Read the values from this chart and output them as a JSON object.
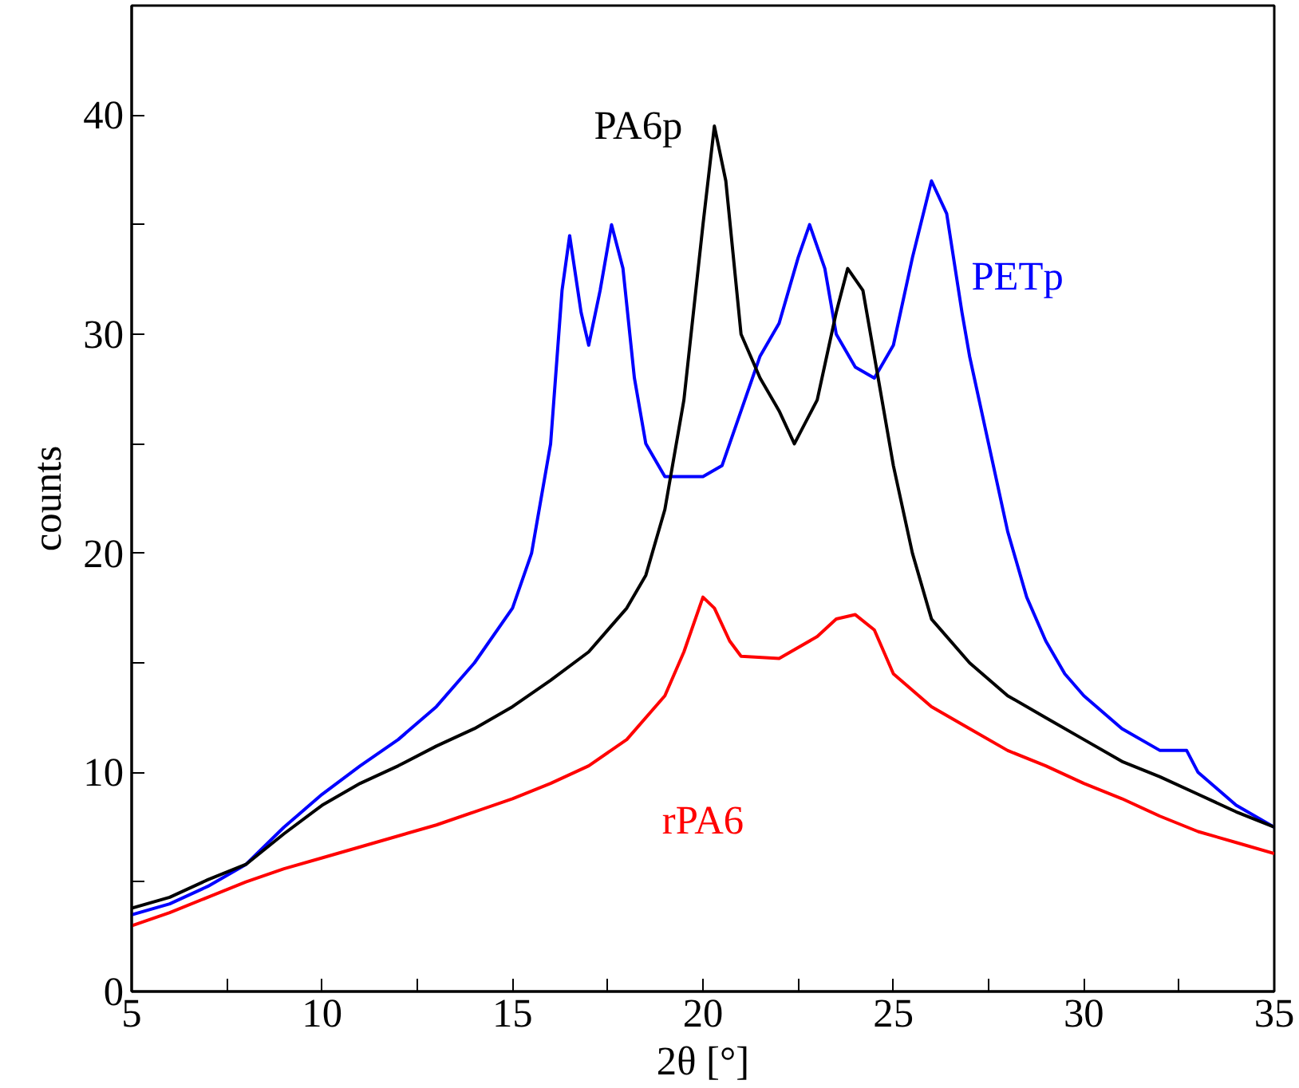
{
  "chart_data": {
    "type": "line",
    "xlabel": "2θ [°]",
    "ylabel": "counts",
    "xlim": [
      5,
      35
    ],
    "ylim": [
      0,
      45
    ],
    "xticks": [
      5,
      {
        "value": 7.5,
        "label": null
      },
      10,
      {
        "value": 12.5,
        "label": null
      },
      15,
      {
        "value": 17.5,
        "label": null
      },
      20,
      {
        "value": 22.5,
        "label": null
      },
      25,
      {
        "value": 27.5,
        "label": null
      },
      30,
      {
        "value": 32.5,
        "label": null
      },
      35
    ],
    "yticks": [
      0,
      {
        "value": 5,
        "label": null
      },
      10,
      {
        "value": 15,
        "label": null
      },
      20,
      {
        "value": 25,
        "label": null
      },
      30,
      {
        "value": 35,
        "label": null
      },
      40
    ],
    "grid": false,
    "marker": "none",
    "line_style": "solid",
    "series": [
      {
        "name": "PETp",
        "color": "#0000ff",
        "x": [
          5,
          6,
          7,
          8,
          9,
          10,
          11,
          12,
          13,
          14,
          15,
          15.5,
          16,
          16.3,
          16.5,
          16.8,
          17,
          17.3,
          17.6,
          17.9,
          18.2,
          18.5,
          19,
          20,
          20.5,
          21,
          21.5,
          22,
          22.5,
          22.8,
          23.2,
          23.5,
          24,
          24.5,
          25,
          25.5,
          26,
          26.4,
          26.8,
          27,
          27.5,
          28,
          28.5,
          29,
          29.5,
          30,
          31,
          32,
          32.7,
          33,
          34,
          35
        ],
        "values": [
          3.5,
          4,
          4.8,
          5.8,
          7.5,
          9,
          10.3,
          11.5,
          13,
          15,
          17.5,
          20,
          25,
          32,
          34.5,
          31,
          29.5,
          32,
          35,
          33,
          28,
          25,
          23.5,
          23.5,
          24,
          26.5,
          29,
          30.5,
          33.5,
          35,
          33,
          30,
          28.5,
          28,
          29.5,
          33.5,
          37,
          35.5,
          31,
          29,
          25,
          21,
          18,
          16,
          14.5,
          13.5,
          12,
          11,
          11,
          10,
          8.5,
          7.5
        ]
      },
      {
        "name": "PA6p",
        "color": "#000000",
        "x": [
          5,
          6,
          7,
          8,
          9,
          10,
          11,
          12,
          13,
          14,
          15,
          16,
          17,
          18,
          18.5,
          19,
          19.5,
          20,
          20.3,
          20.6,
          21,
          21.5,
          22,
          22.4,
          23,
          23.5,
          23.8,
          24.2,
          24.6,
          25,
          25.5,
          26,
          27,
          28,
          29,
          30,
          31,
          32,
          33,
          34,
          35
        ],
        "values": [
          3.8,
          4.3,
          5.1,
          5.8,
          7.2,
          8.5,
          9.5,
          10.3,
          11.2,
          12,
          13,
          14.2,
          15.5,
          17.5,
          19,
          22,
          27,
          35,
          39.5,
          37,
          30,
          28,
          26.5,
          25,
          27,
          31,
          33,
          32,
          28,
          24,
          20,
          17,
          15,
          13.5,
          12.5,
          11.5,
          10.5,
          9.8,
          9,
          8.2,
          7.5
        ]
      },
      {
        "name": "rPA6",
        "color": "#ff0000",
        "x": [
          5,
          6,
          7,
          8,
          9,
          10,
          11,
          12,
          13,
          14,
          15,
          16,
          17,
          18,
          19,
          19.5,
          20,
          20.3,
          20.7,
          21,
          22,
          23,
          23.5,
          24,
          24.5,
          25,
          26,
          27,
          28,
          29,
          30,
          31,
          32,
          33,
          34,
          35
        ],
        "values": [
          3,
          3.6,
          4.3,
          5,
          5.6,
          6.1,
          6.6,
          7.1,
          7.6,
          8.2,
          8.8,
          9.5,
          10.3,
          11.5,
          13.5,
          15.5,
          18,
          17.5,
          16,
          15.3,
          15.2,
          16.2,
          17,
          17.2,
          16.5,
          14.5,
          13,
          12,
          11,
          10.3,
          9.5,
          8.8,
          8,
          7.3,
          6.8,
          6.3
        ]
      }
    ]
  }
}
